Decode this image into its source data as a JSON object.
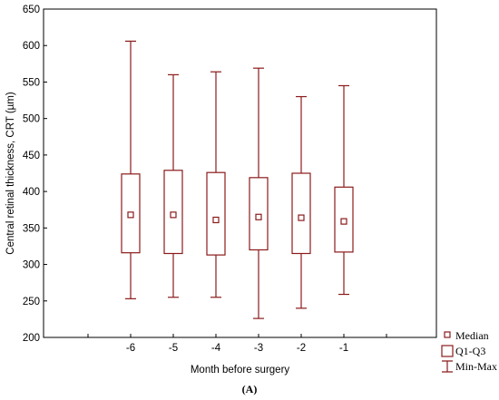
{
  "chart_data": {
    "type": "boxplot",
    "xlabel": "Month before surgery",
    "ylabel": "Central retinal thickness, CRT (µm)",
    "caption": "(A)",
    "ylim": [
      200,
      650
    ],
    "yticks": [
      200,
      250,
      300,
      350,
      400,
      450,
      500,
      550,
      600,
      650
    ],
    "categories": [
      "-6",
      "-5",
      "-4",
      "-3",
      "-2",
      "-1"
    ],
    "boxes": [
      {
        "category": "-6",
        "min": 253,
        "q1": 316,
        "median": 368,
        "q3": 424,
        "max": 606
      },
      {
        "category": "-5",
        "min": 255,
        "q1": 315,
        "median": 368,
        "q3": 429,
        "max": 560
      },
      {
        "category": "-4",
        "min": 255,
        "q1": 313,
        "median": 361,
        "q3": 426,
        "max": 564
      },
      {
        "category": "-3",
        "min": 226,
        "q1": 320,
        "median": 365,
        "q3": 419,
        "max": 569
      },
      {
        "category": "-2",
        "min": 240,
        "q1": 315,
        "median": 364,
        "q3": 425,
        "max": 530
      },
      {
        "category": "-1",
        "min": 259,
        "q1": 317,
        "median": 359,
        "q3": 406,
        "max": 545
      }
    ],
    "legend": {
      "position": "bottom-right",
      "items": [
        "Median",
        "Q1-Q3",
        "Min-Max"
      ]
    },
    "colors": {
      "series": "#8b1a1a",
      "axis": "#000000"
    },
    "grid": false
  }
}
